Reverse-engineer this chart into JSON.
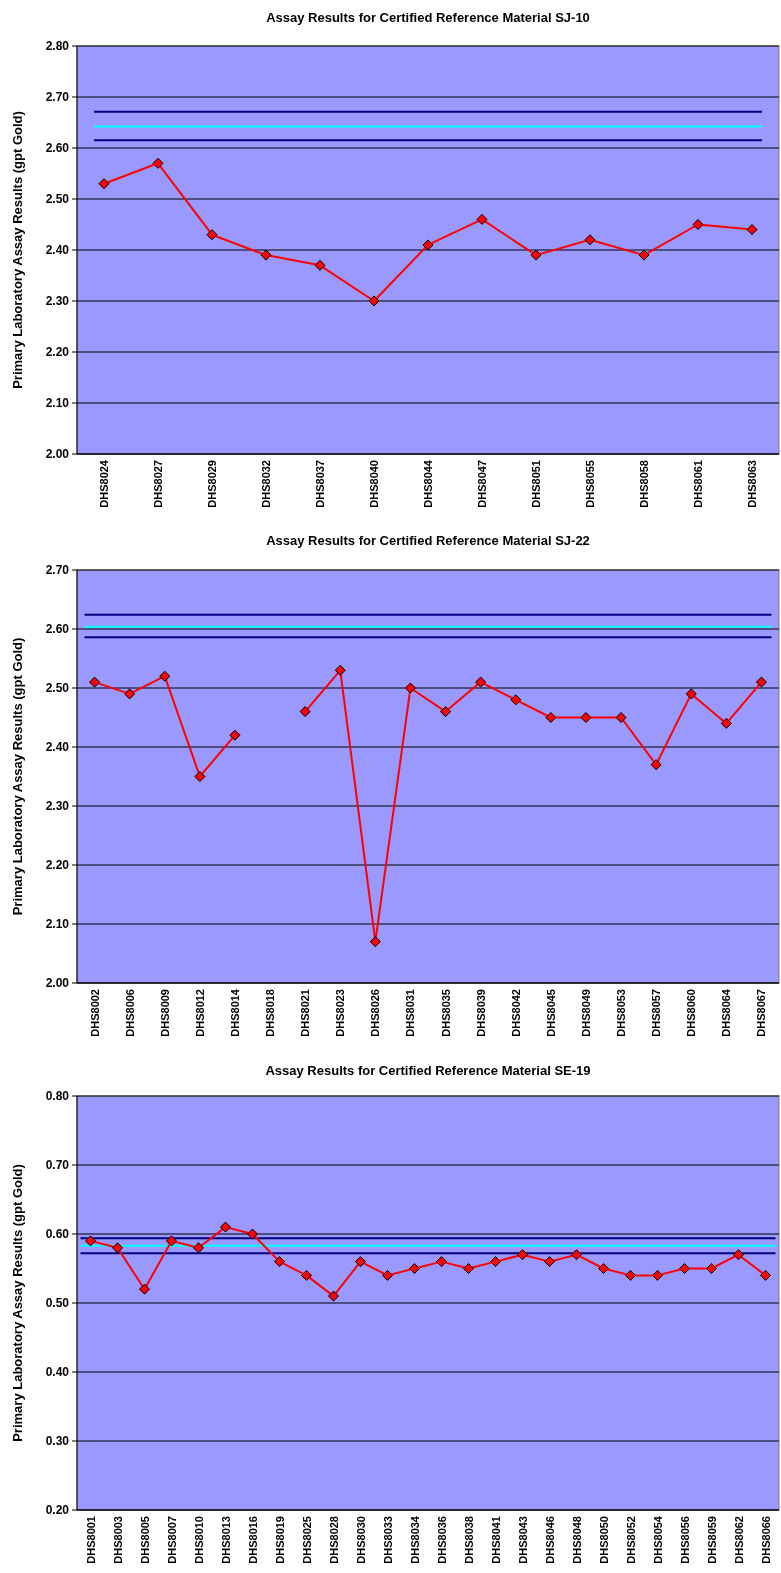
{
  "chart_data": [
    {
      "type": "line",
      "title": "Assay Results for Certified Reference Material SJ-10",
      "ylabel": "Primary Laboratory Assay Results (gpt Gold)",
      "categories": [
        "DHS8024",
        "DHS8027",
        "DHS8029",
        "DHS8032",
        "DHS8037",
        "DHS8040",
        "DHS8044",
        "DHS8047",
        "DHS8051",
        "DHS8055",
        "DHS8058",
        "DHS8061",
        "DHS8063"
      ],
      "series": [
        {
          "color": "#ff0000",
          "values": [
            2.53,
            2.57,
            2.43,
            2.39,
            2.37,
            2.3,
            2.41,
            2.46,
            2.39,
            2.42,
            2.39,
            2.45,
            2.44
          ]
        }
      ],
      "ylim": [
        2.0,
        2.8
      ],
      "yticks": [
        {
          "value": 2.0,
          "label": "2.00"
        },
        {
          "value": 2.1,
          "label": "2.10"
        },
        {
          "value": 2.2,
          "label": "2.20"
        },
        {
          "value": 2.3,
          "label": "2.30"
        },
        {
          "value": 2.4,
          "label": "2.40"
        },
        {
          "value": 2.5,
          "label": "2.50"
        },
        {
          "value": 2.6,
          "label": "2.60"
        },
        {
          "value": 2.7,
          "label": "2.70"
        },
        {
          "value": 2.8,
          "label": "2.80"
        }
      ],
      "grid": "y",
      "marker": "diamond",
      "ref_lines": [
        {
          "axis": "y",
          "value": 2.671,
          "color": "#000080"
        },
        {
          "axis": "y",
          "value": 2.642,
          "color": "#00ffff"
        },
        {
          "axis": "y",
          "value": 2.615,
          "color": "#000080"
        }
      ]
    },
    {
      "type": "line",
      "title": "Assay Results for Certified Reference Material SJ-22",
      "ylabel": "Primary Laboratory Assay Results (gpt Gold)",
      "categories": [
        "DHS8002",
        "DHS8006",
        "DHS8009",
        "DHS8012",
        "DHS8014",
        "DHS8018",
        "DHS8021",
        "DHS8023",
        "DHS8026",
        "DHS8031",
        "DHS8035",
        "DHS8039",
        "DHS8042",
        "DHS8045",
        "DHS8049",
        "DHS8053",
        "DHS8057",
        "DHS8060",
        "DHS8064",
        "DHS8067"
      ],
      "series": [
        {
          "color": "#ff0000",
          "values": [
            2.51,
            2.49,
            2.52,
            2.35,
            2.42,
            null,
            2.46,
            2.53,
            2.07,
            2.5,
            2.46,
            2.51,
            2.48,
            2.45,
            2.45,
            2.45,
            2.37,
            2.49,
            2.44,
            2.51
          ]
        }
      ],
      "ylim": [
        2.0,
        2.7
      ],
      "yticks": [
        {
          "value": 2.0,
          "label": "2.00"
        },
        {
          "value": 2.1,
          "label": "2.10"
        },
        {
          "value": 2.2,
          "label": "2.20"
        },
        {
          "value": 2.3,
          "label": "2.30"
        },
        {
          "value": 2.4,
          "label": "2.40"
        },
        {
          "value": 2.5,
          "label": "2.50"
        },
        {
          "value": 2.6,
          "label": "2.60"
        },
        {
          "value": 2.7,
          "label": "2.70"
        }
      ],
      "grid": "y",
      "marker": "diamond",
      "ref_lines": [
        {
          "axis": "y",
          "value": 2.624,
          "color": "#000080"
        },
        {
          "axis": "y",
          "value": 2.604,
          "color": "#00ffff"
        },
        {
          "axis": "y",
          "value": 2.586,
          "color": "#000080"
        }
      ]
    },
    {
      "type": "line",
      "title": "Assay Results for Certified Reference Material SE-19",
      "ylabel": "Primary Laboratory Assay Results (gpt Gold)",
      "categories": [
        "DHS8001",
        "DHS8003",
        "DHS8005",
        "DHS8007",
        "DHS8010",
        "DHS8013",
        "DHS8016",
        "DHS8019",
        "DHS8025",
        "DHS8028",
        "DHS8030",
        "DHS8033",
        "DHS8034",
        "DHS8036",
        "DHS8038",
        "DHS8041",
        "DHS8043",
        "DHS8046",
        "DHS8048",
        "DHS8050",
        "DHS8052",
        "DHS8054",
        "DHS8056",
        "DHS8059",
        "DHS8062",
        "DHS8066"
      ],
      "series": [
        {
          "color": "#ff0000",
          "values": [
            0.59,
            0.58,
            0.52,
            0.59,
            0.58,
            0.61,
            0.6,
            0.56,
            0.54,
            0.51,
            0.56,
            0.54,
            0.55,
            0.56,
            0.55,
            0.56,
            0.57,
            0.56,
            0.57,
            0.55,
            0.54,
            0.54,
            0.55,
            0.55,
            0.57,
            0.54
          ]
        }
      ],
      "ylim": [
        0.2,
        0.8
      ],
      "yticks": [
        {
          "value": 0.2,
          "label": "0.20"
        },
        {
          "value": 0.3,
          "label": "0.30"
        },
        {
          "value": 0.4,
          "label": "0.40"
        },
        {
          "value": 0.5,
          "label": "0.50"
        },
        {
          "value": 0.6,
          "label": "0.60"
        },
        {
          "value": 0.7,
          "label": "0.70"
        },
        {
          "value": 0.8,
          "label": "0.80"
        }
      ],
      "grid": "y",
      "marker": "diamond",
      "ref_lines": [
        {
          "axis": "y",
          "value": 0.594,
          "color": "#000080"
        },
        {
          "axis": "y",
          "value": 0.583,
          "color": "#00ffff"
        },
        {
          "axis": "y",
          "value": 0.572,
          "color": "#000080"
        }
      ]
    }
  ]
}
